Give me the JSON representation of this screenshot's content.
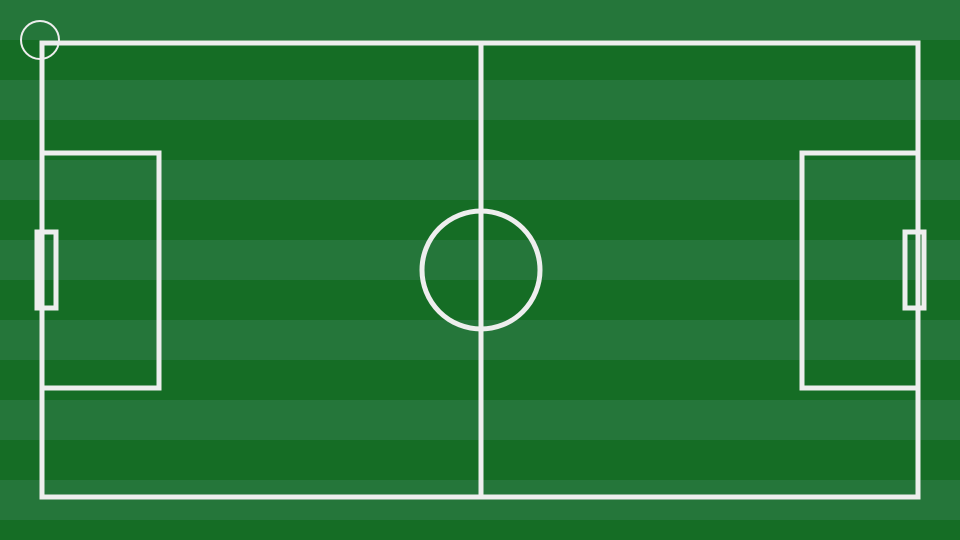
{
  "colors": {
    "stripe_light": "#25763a",
    "stripe_dark": "#156d25",
    "line": "#eeeeee"
  },
  "pitch": {
    "half_count": 2
  },
  "corner_marker": {
    "icon": "circle-marker-icon"
  }
}
